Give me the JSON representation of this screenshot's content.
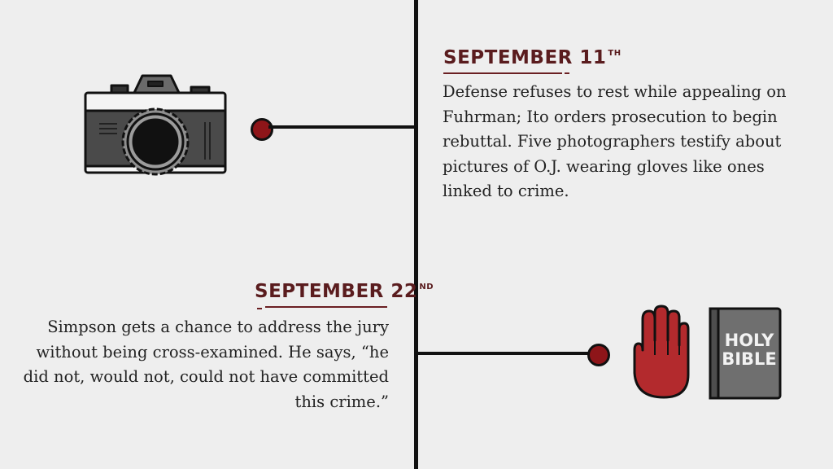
{
  "entries": [
    {
      "date": "SEPTEMBER 11",
      "date_suffix": "TH",
      "text": "Defense refuses to rest while appealing on Fuhrman; Ito orders prosecution to begin rebuttal. Five photographers testify about pictures of O.J. wearing gloves like ones linked to crime.",
      "icon": "camera-icon"
    },
    {
      "date": "SEPTEMBER 22",
      "date_suffix": "ND",
      "text": "Simpson gets a chance to address the jury without being cross-examined. He says, “he did not, would not, could not have committed this crime.”",
      "icons": [
        "raised-hand-icon",
        "holy-bible-icon"
      ]
    }
  ],
  "bible": {
    "line1": "HOLY",
    "line2": "BIBLE"
  },
  "colors": {
    "accent": "#8e1519",
    "date": "#5a1c1e",
    "background": "#eeeeee",
    "line": "#111111"
  }
}
